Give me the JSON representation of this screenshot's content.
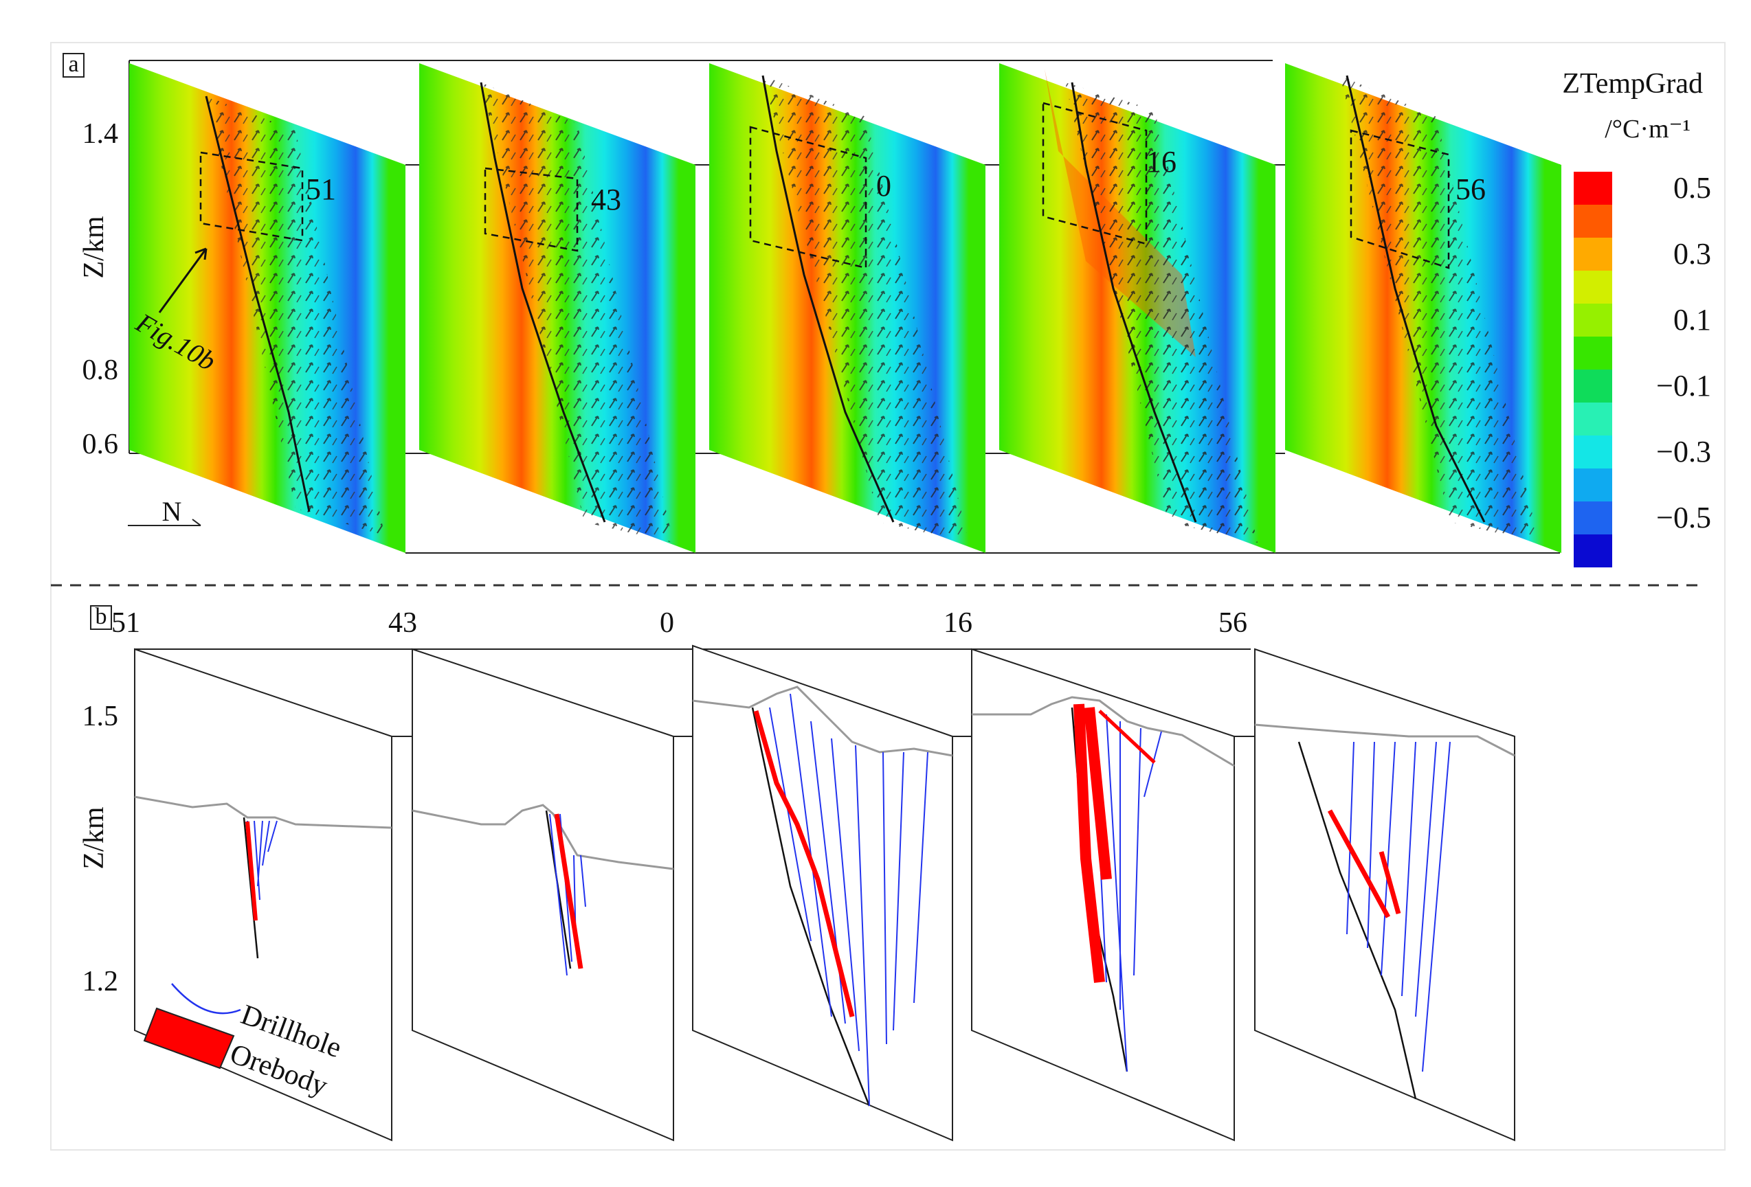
{
  "panel_a": {
    "label": "a",
    "yaxis": {
      "label": "Z/km",
      "ticks": [
        "1.4",
        "0.8",
        "0.6"
      ]
    },
    "north_label": "N",
    "annotation": "Fig.10b",
    "sections": [
      "51",
      "43",
      "0",
      "16",
      "56"
    ],
    "colorbar": {
      "title_line1": "ZTempGrad",
      "title_line2": "/°C·m⁻¹",
      "tick_labels": [
        "0.5",
        "0.3",
        "0.1",
        "−0.1",
        "−0.3",
        "−0.5"
      ],
      "colors": [
        "#ff0000",
        "#ff5a00",
        "#ffaa00",
        "#d2ee00",
        "#96f000",
        "#37e600",
        "#0fdc5a",
        "#28f0b4",
        "#14e6e6",
        "#0faaf0",
        "#1e64f0",
        "#0a0ad2"
      ]
    }
  },
  "panel_b": {
    "label": "b",
    "yaxis": {
      "label": "Z/km",
      "ticks": [
        "1.5",
        "1.2"
      ]
    },
    "sections": [
      "51",
      "43",
      "0",
      "16",
      "56"
    ],
    "legend": [
      {
        "label": "Drillhole",
        "color": "#2233ee"
      },
      {
        "label": "Orebody",
        "color": "#ff0000"
      }
    ]
  }
}
